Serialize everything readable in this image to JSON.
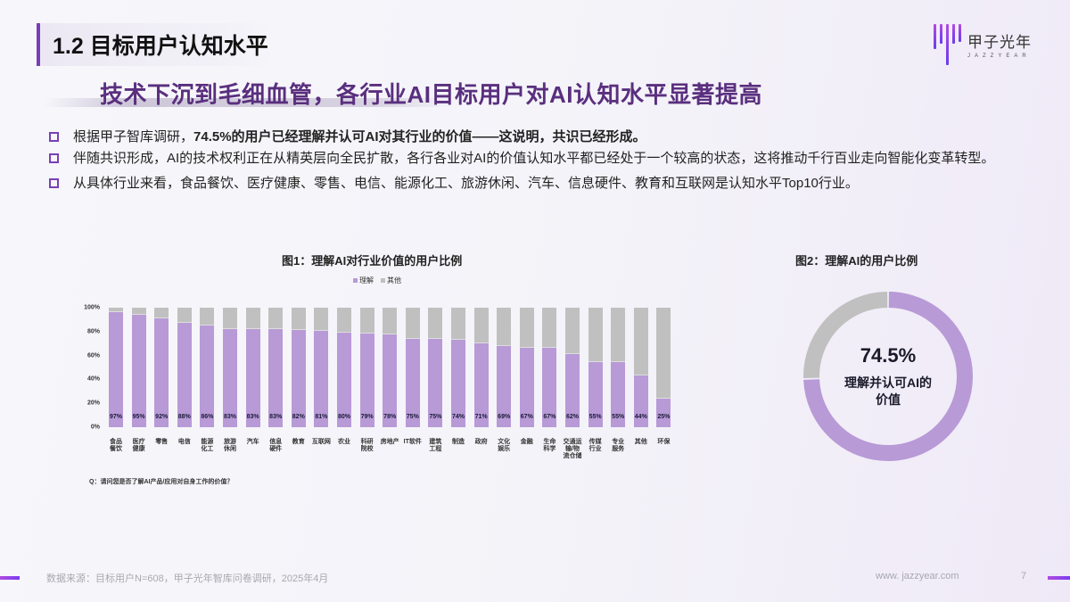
{
  "header": {
    "section_title": "1.2 目标用户认知水平",
    "logo_cn": "甲子光年",
    "logo_en": "JAZZYEAR",
    "headline": "技术下沉到毛细血管，各行业AI目标用户对AI认知水平显著提高"
  },
  "bullets": [
    {
      "pre": "根据甲子智库调研，",
      "bold": "74.5%的用户已经理解并认可AI对其行业的价值——这说明，共识已经形成。",
      "post": ""
    },
    {
      "pre": "伴随共识形成，AI的技术权利正在从精英层向全民扩散，各行各业对AI的价值认知水平都已经处于一个较高的状态，这将推动千行百业走向智能化变革转型。",
      "bold": "",
      "post": ""
    },
    {
      "pre": "从具体行业来看，食品餐饮、医疗健康、零售、电信、能源化工、旅游休闲、汽车、信息硬件、教育和互联网是认知水平Top10行业。",
      "bold": "",
      "post": ""
    }
  ],
  "colors": {
    "understand": "#b89ad6",
    "other": "#c0c0c0",
    "accent": "#7a3fb5",
    "headline": "#5a2f7e"
  },
  "chart_data": [
    {
      "type": "bar",
      "stacked": true,
      "title": "图1：理解AI对行业价值的用户比例",
      "legend": [
        "理解",
        "其他"
      ],
      "legend_position": "top",
      "categories": [
        "食品餐饮",
        "医疗健康",
        "零售",
        "电信",
        "能源化工",
        "旅游休闲",
        "汽车",
        "信息硬件",
        "教育",
        "互联网",
        "农业",
        "科研院校",
        "房地产",
        "IT软件",
        "建筑工程",
        "制造",
        "政府",
        "文化娱乐",
        "金融",
        "生命科学",
        "交通运输/物流仓储",
        "传媒行业",
        "专业服务",
        "其他",
        "环保"
      ],
      "category_display": [
        "食品\n餐饮",
        "医疗\n健康",
        "零售",
        "电信",
        "能源\n化工",
        "旅游\n休闲",
        "汽车",
        "信息\n硬件",
        "教育",
        "互联网",
        "农业",
        "科研\n院校",
        "房地产",
        "IT软件",
        "建筑\n工程",
        "制造",
        "政府",
        "文化\n娱乐",
        "金融",
        "生命\n科学",
        "交通运\n输/物\n流仓储",
        "传媒\n行业",
        "专业\n服务",
        "其他",
        "环保"
      ],
      "series": [
        {
          "name": "理解",
          "values": [
            97,
            95,
            92,
            88,
            86,
            83,
            83,
            83,
            82,
            81,
            80,
            79,
            78,
            75,
            75,
            74,
            71,
            69,
            67,
            67,
            62,
            55,
            55,
            44,
            25
          ]
        },
        {
          "name": "其他",
          "values": [
            3,
            5,
            8,
            12,
            14,
            17,
            17,
            17,
            18,
            19,
            20,
            21,
            22,
            25,
            25,
            26,
            29,
            31,
            33,
            33,
            38,
            45,
            45,
            56,
            75
          ]
        }
      ],
      "data_labels": [
        "97%",
        "95%",
        "92%",
        "88%",
        "86%",
        "83%",
        "83%",
        "83%",
        "82%",
        "81%",
        "80%",
        "79%",
        "78%",
        "75%",
        "75%",
        "74%",
        "71%",
        "69%",
        "67%",
        "67%",
        "62%",
        "55%",
        "55%",
        "44%",
        "25%"
      ],
      "ytick_labels": [
        "100%",
        "80%",
        "60%",
        "40%",
        "20%",
        "0%"
      ],
      "ylim": [
        0,
        100
      ],
      "xlabel": "",
      "ylabel": "",
      "grid": false,
      "note": "Q：请问您是否了解AI产品/应用对自身工作的价值？"
    },
    {
      "type": "pie",
      "donut": true,
      "title": "图2：理解AI的用户比例",
      "labels": [
        "理解并认可AI的价值",
        "其他"
      ],
      "values": [
        74.5,
        25.5
      ],
      "center_value": "74.5%",
      "center_label": "理解并认可AI的价值"
    }
  ],
  "footer": {
    "source": "数据来源：目标用户N=608，甲子光年智库问卷调研，2025年4月",
    "url": "www. jazzyear.com",
    "page": "7"
  }
}
